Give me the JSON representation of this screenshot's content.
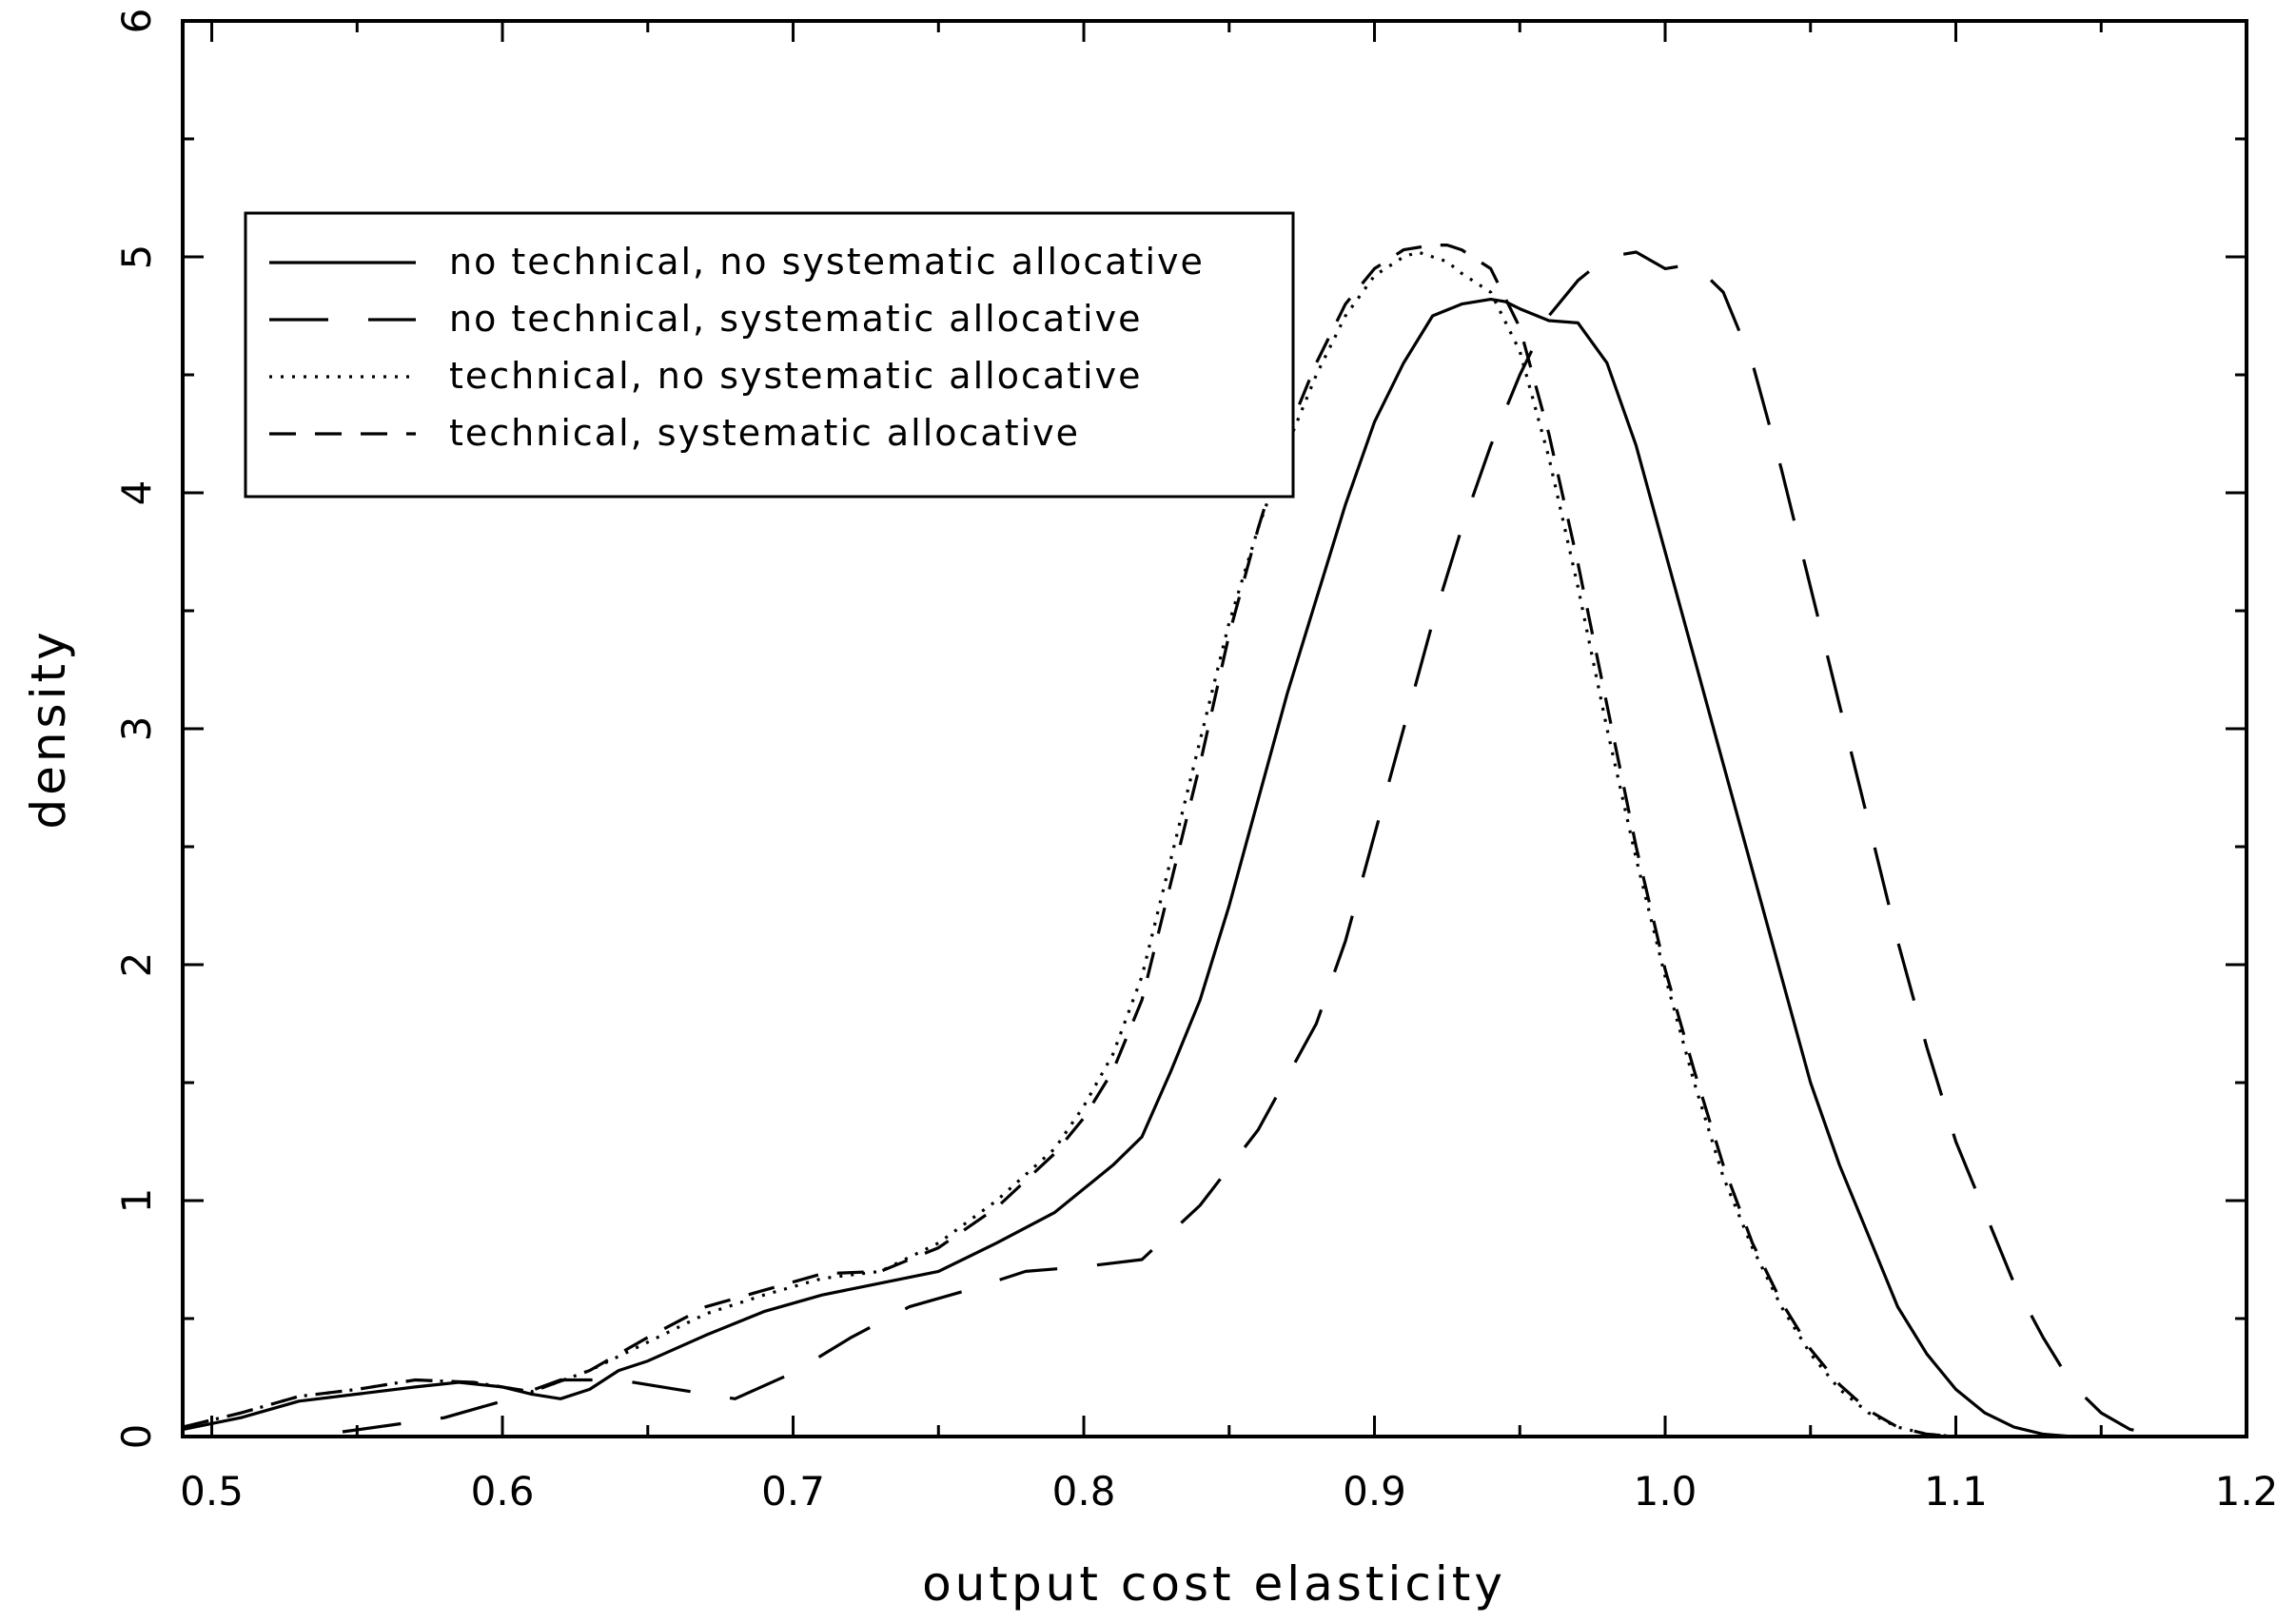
{
  "chart_data": {
    "type": "line",
    "xlabel": "output cost elasticity",
    "ylabel": "density",
    "xlim": [
      0.49,
      1.2
    ],
    "ylim": [
      0,
      6
    ],
    "x_ticks": [
      "0.5",
      "0.6",
      "0.7",
      "0.8",
      "0.9",
      "1.0",
      "1.1",
      "1.2"
    ],
    "y_ticks": [
      "0",
      "1",
      "2",
      "3",
      "4",
      "5",
      "6"
    ],
    "x_tick_values": [
      0.5,
      0.6,
      0.7,
      0.8,
      0.9,
      1.0,
      1.1,
      1.2
    ],
    "y_tick_values": [
      0,
      1,
      2,
      3,
      4,
      5,
      6
    ],
    "grid": false,
    "legend_position": "upper-left",
    "series": [
      {
        "name": "no technical, no systematic allocative",
        "dash": "solid",
        "x": [
          0.49,
          0.51,
          0.53,
          0.55,
          0.57,
          0.585,
          0.6,
          0.61,
          0.62,
          0.63,
          0.64,
          0.65,
          0.67,
          0.69,
          0.71,
          0.73,
          0.75,
          0.77,
          0.79,
          0.81,
          0.82,
          0.83,
          0.84,
          0.85,
          0.86,
          0.87,
          0.88,
          0.89,
          0.9,
          0.91,
          0.92,
          0.93,
          0.94,
          0.945,
          0.95,
          0.96,
          0.97,
          0.98,
          0.99,
          1.0,
          1.01,
          1.02,
          1.03,
          1.04,
          1.05,
          1.06,
          1.07,
          1.08,
          1.09,
          1.1,
          1.11,
          1.12,
          1.13,
          1.14
        ],
        "y": [
          0.03,
          0.08,
          0.15,
          0.18,
          0.21,
          0.23,
          0.21,
          0.18,
          0.16,
          0.2,
          0.28,
          0.32,
          0.43,
          0.53,
          0.6,
          0.65,
          0.7,
          0.82,
          0.95,
          1.15,
          1.27,
          1.55,
          1.85,
          2.25,
          2.7,
          3.15,
          3.55,
          3.95,
          4.3,
          4.55,
          4.75,
          4.8,
          4.82,
          4.81,
          4.78,
          4.73,
          4.72,
          4.55,
          4.2,
          3.75,
          3.3,
          2.85,
          2.4,
          1.95,
          1.5,
          1.15,
          0.85,
          0.55,
          0.35,
          0.2,
          0.1,
          0.04,
          0.01,
          0.0
        ]
      },
      {
        "name": "no technical, systematic allocative",
        "dash": "long-dash",
        "x": [
          0.545,
          0.58,
          0.6,
          0.62,
          0.64,
          0.66,
          0.68,
          0.7,
          0.72,
          0.74,
          0.76,
          0.78,
          0.8,
          0.82,
          0.84,
          0.86,
          0.88,
          0.89,
          0.9,
          0.91,
          0.92,
          0.93,
          0.94,
          0.95,
          0.96,
          0.97,
          0.98,
          0.99,
          1.0,
          1.01,
          1.02,
          1.03,
          1.04,
          1.05,
          1.06,
          1.07,
          1.08,
          1.09,
          1.1,
          1.11,
          1.12,
          1.13,
          1.14,
          1.15,
          1.16,
          1.175
        ],
        "y": [
          0.02,
          0.08,
          0.15,
          0.24,
          0.24,
          0.2,
          0.16,
          0.27,
          0.42,
          0.55,
          0.62,
          0.7,
          0.72,
          0.75,
          0.98,
          1.3,
          1.75,
          2.1,
          2.55,
          3.0,
          3.45,
          3.85,
          4.2,
          4.5,
          4.75,
          4.9,
          5.0,
          5.02,
          4.95,
          4.97,
          4.85,
          4.55,
          4.1,
          3.6,
          3.1,
          2.6,
          2.1,
          1.65,
          1.25,
          0.95,
          0.65,
          0.42,
          0.22,
          0.1,
          0.03,
          0.0
        ]
      },
      {
        "name": "technical, no systematic allocative",
        "dash": "dotted",
        "x": [
          0.49,
          0.51,
          0.53,
          0.55,
          0.57,
          0.59,
          0.61,
          0.63,
          0.65,
          0.67,
          0.69,
          0.71,
          0.73,
          0.75,
          0.77,
          0.79,
          0.8,
          0.81,
          0.82,
          0.83,
          0.84,
          0.85,
          0.86,
          0.87,
          0.88,
          0.89,
          0.9,
          0.91,
          0.915,
          0.92,
          0.925,
          0.93,
          0.94,
          0.95,
          0.96,
          0.97,
          0.98,
          0.99,
          1.0,
          1.01,
          1.02,
          1.03,
          1.04,
          1.05,
          1.06,
          1.07,
          1.08,
          1.09,
          1.1
        ],
        "y": [
          0.04,
          0.1,
          0.17,
          0.2,
          0.24,
          0.23,
          0.19,
          0.28,
          0.4,
          0.52,
          0.6,
          0.67,
          0.7,
          0.82,
          1.0,
          1.22,
          1.4,
          1.62,
          1.95,
          2.45,
          2.95,
          3.45,
          3.85,
          4.2,
          4.5,
          4.75,
          4.92,
          5.0,
          5.02,
          5.0,
          4.98,
          4.93,
          4.85,
          4.6,
          4.15,
          3.6,
          3.0,
          2.45,
          1.95,
          1.5,
          1.1,
          0.8,
          0.55,
          0.35,
          0.2,
          0.1,
          0.04,
          0.01,
          0.0
        ]
      },
      {
        "name": "technical, systematic allocative",
        "dash": "short-dash",
        "x": [
          0.49,
          0.51,
          0.53,
          0.55,
          0.57,
          0.59,
          0.61,
          0.63,
          0.65,
          0.67,
          0.69,
          0.71,
          0.73,
          0.75,
          0.77,
          0.79,
          0.8,
          0.81,
          0.82,
          0.83,
          0.84,
          0.85,
          0.86,
          0.87,
          0.88,
          0.89,
          0.9,
          0.91,
          0.92,
          0.925,
          0.93,
          0.94,
          0.95,
          0.96,
          0.97,
          0.98,
          0.99,
          1.0,
          1.01,
          1.02,
          1.03,
          1.04,
          1.05,
          1.06,
          1.07,
          1.08,
          1.09,
          1.1
        ],
        "y": [
          0.04,
          0.1,
          0.17,
          0.2,
          0.24,
          0.23,
          0.19,
          0.28,
          0.42,
          0.55,
          0.62,
          0.69,
          0.7,
          0.8,
          0.97,
          1.2,
          1.35,
          1.55,
          1.85,
          2.35,
          2.85,
          3.4,
          3.85,
          4.25,
          4.55,
          4.8,
          4.95,
          5.03,
          5.05,
          5.05,
          5.03,
          4.95,
          4.7,
          4.25,
          3.7,
          3.1,
          2.5,
          1.98,
          1.55,
          1.15,
          0.82,
          0.57,
          0.37,
          0.22,
          0.11,
          0.04,
          0.01,
          0.0
        ]
      }
    ]
  }
}
